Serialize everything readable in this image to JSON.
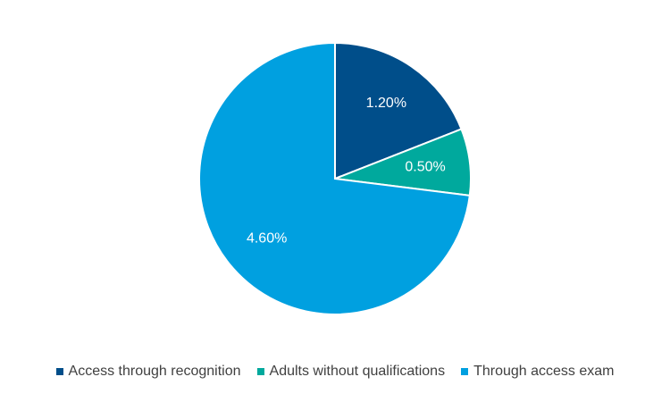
{
  "chart_data": {
    "type": "pie",
    "title": "",
    "slices": [
      {
        "name": "Access through recognition",
        "value": 1.2,
        "label": "1.20%",
        "color": "#004e8a"
      },
      {
        "name": "Adults without qualifications",
        "value": 0.5,
        "label": "0.50%",
        "color": "#00a99d"
      },
      {
        "name": "Through access exam",
        "value": 4.6,
        "label": "4.60%",
        "color": "#00a0e0"
      }
    ],
    "start_angle_deg": 0,
    "direction": "clockwise",
    "legend_position": "bottom"
  }
}
